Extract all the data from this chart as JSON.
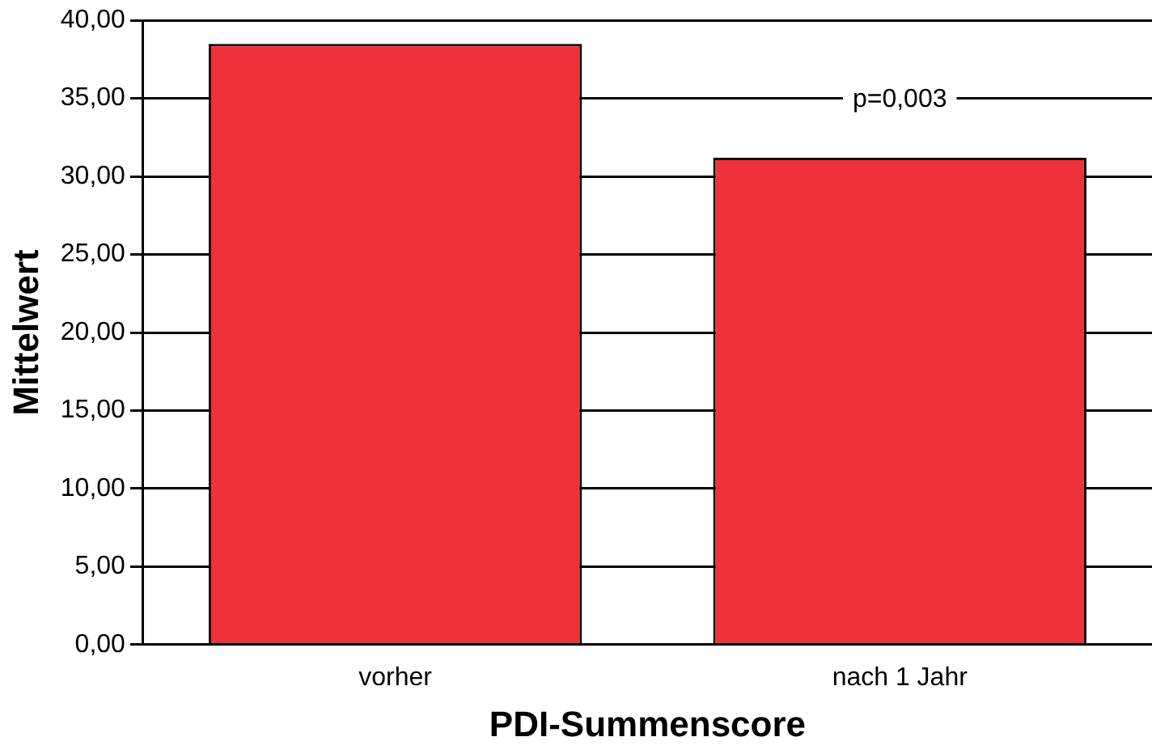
{
  "chart_data": {
    "type": "bar",
    "xlabel": "PDI-Summenscore",
    "ylabel": "Mittelwert",
    "categories": [
      "vorher",
      "nach 1 Jahr"
    ],
    "values": [
      38.5,
      31.2
    ],
    "color": "#ef323a",
    "ylim": [
      0,
      40
    ],
    "yticks": [
      {
        "value": 0,
        "label": "0,00"
      },
      {
        "value": 5,
        "label": "5,00"
      },
      {
        "value": 10,
        "label": "10,00"
      },
      {
        "value": 15,
        "label": "15,00"
      },
      {
        "value": 20,
        "label": "20,00"
      },
      {
        "value": 25,
        "label": "25,00"
      },
      {
        "value": 30,
        "label": "30,00"
      },
      {
        "value": 35,
        "label": "35,00"
      },
      {
        "value": 40,
        "label": "40,00"
      }
    ],
    "grid": "y",
    "legend": false,
    "annotations": [
      "p=0,003"
    ]
  }
}
